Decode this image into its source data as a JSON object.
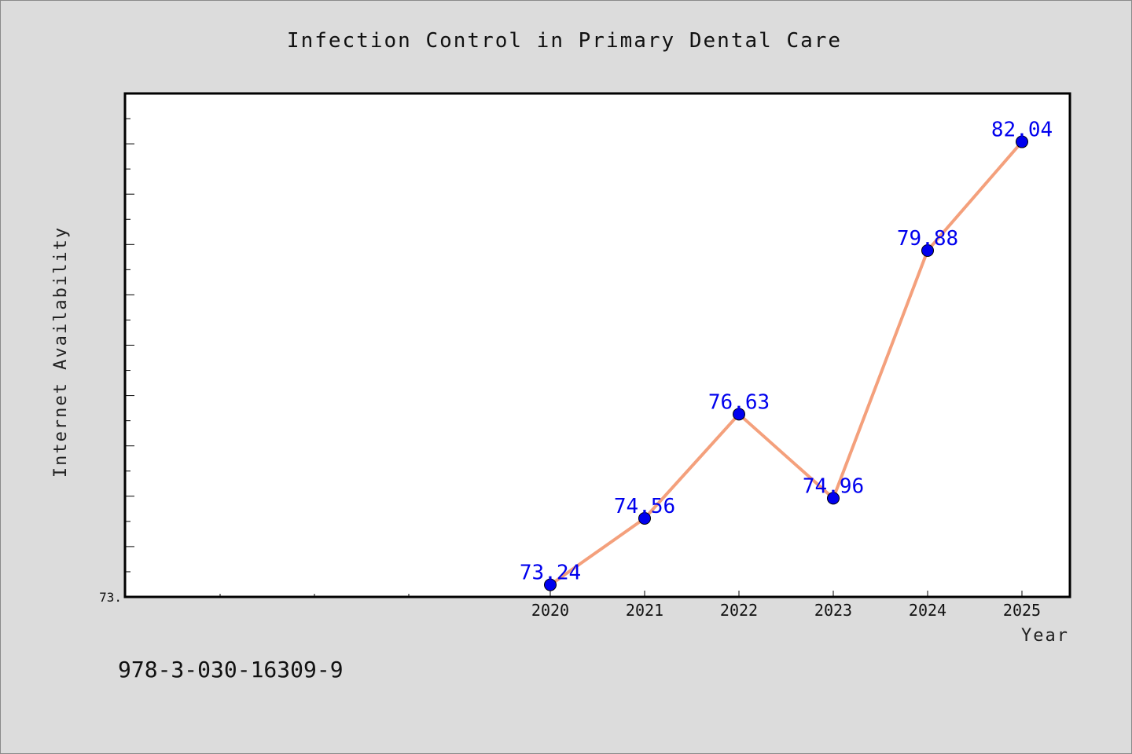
{
  "chart_data": {
    "type": "line",
    "title": "Infection Control in Primary Dental Care",
    "xlabel": "Year",
    "ylabel": "Internet Availability",
    "x": [
      "2020",
      "2021",
      "2022",
      "2023",
      "2024",
      "2025"
    ],
    "values": [
      73.24,
      74.56,
      76.63,
      74.96,
      79.88,
      82.04
    ],
    "data_labels": [
      "73.24",
      "74.56",
      "76.63",
      "74.96",
      "79.88",
      "82.04"
    ],
    "ylim": [
      73.0,
      83.0
    ],
    "ytick_label": "73.",
    "grid": false,
    "legend": "none",
    "line_color": "#f4a07c",
    "marker_color": "#0000ee",
    "label_color": "#0000ee"
  },
  "footer": {
    "isbn": "978-3-030-16309-9"
  },
  "colors": {
    "background": "#dcdcdc",
    "plot_background": "#ffffff"
  }
}
